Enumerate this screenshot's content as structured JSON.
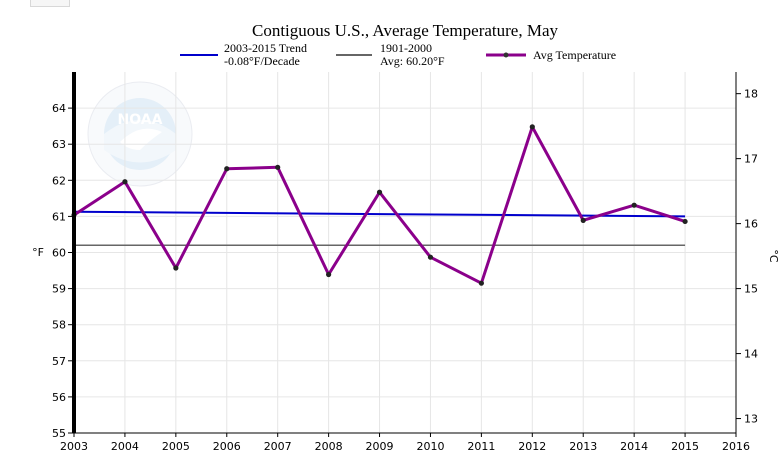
{
  "chart_data": {
    "type": "line",
    "title": "Contiguous U.S., Average Temperature, May",
    "xlabel": "",
    "ylabel": "°F",
    "ylabel_right": "°C",
    "xlim": [
      2003,
      2016
    ],
    "ylim": [
      55,
      65
    ],
    "ylim_right_ticks": [
      13,
      14,
      15,
      16,
      17,
      18
    ],
    "x_ticks": [
      2003,
      2004,
      2005,
      2006,
      2007,
      2008,
      2009,
      2010,
      2011,
      2012,
      2013,
      2014,
      2015,
      2016
    ],
    "y_ticks": [
      55,
      56,
      57,
      58,
      59,
      60,
      61,
      62,
      63,
      64
    ],
    "grid": true,
    "legend": [
      {
        "line1": "2003-2015 Trend",
        "line2": "-0.08°F/Decade",
        "color": "#0000cc"
      },
      {
        "line1": "1901-2000",
        "line2": "Avg: 60.20°F",
        "color": "#666666"
      },
      {
        "line1": "Avg Temperature",
        "line2": "",
        "color": "#8b008b"
      }
    ],
    "series": [
      {
        "name": "Avg Temperature",
        "color": "#8b008b",
        "x": [
          2003,
          2004,
          2005,
          2006,
          2007,
          2008,
          2009,
          2010,
          2011,
          2012,
          2013,
          2014,
          2015
        ],
        "values": [
          61.04,
          61.96,
          59.57,
          62.32,
          62.36,
          59.39,
          61.67,
          59.87,
          59.15,
          63.48,
          60.89,
          61.31,
          60.86
        ]
      },
      {
        "name": "2003-2015 Trend",
        "color": "#0000cc",
        "x": [
          2003,
          2015
        ],
        "values": [
          61.13,
          61.0
        ]
      },
      {
        "name": "1901-2000 Avg",
        "color": "#666666",
        "x": [
          2003,
          2015
        ],
        "values": [
          60.2,
          60.2
        ]
      }
    ],
    "watermark": "NOAA"
  }
}
